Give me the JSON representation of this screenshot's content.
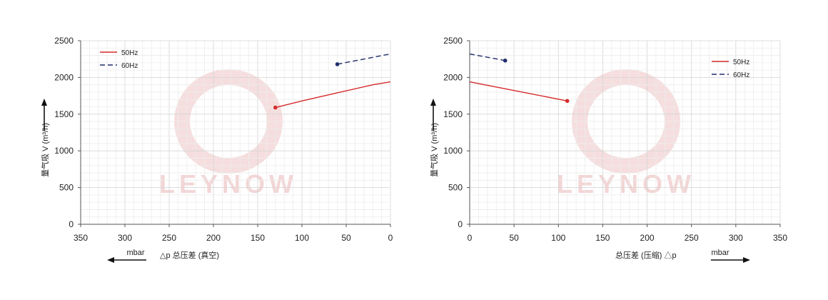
{
  "chart_data": [
    {
      "type": "line",
      "panel": "vacuum",
      "x_reversed": true,
      "xlim": [
        0,
        350
      ],
      "ylim": [
        0,
        2500
      ],
      "x_ticks": [
        350,
        300,
        250,
        200,
        150,
        100,
        50,
        0
      ],
      "y_ticks": [
        0,
        500,
        1000,
        1500,
        2000,
        2500
      ],
      "ylabel": "量气吸 V (m³/h)",
      "xlabel": "△p  总压差 (真空)",
      "x_unit": "mbar",
      "legend_placement": "top-left",
      "grid": true,
      "series": [
        {
          "name": "50Hz",
          "color": "#d62b2b",
          "dash": "solid",
          "x": [
            130,
            100,
            60,
            20,
            0
          ],
          "y": [
            1590,
            1680,
            1790,
            1900,
            1940
          ]
        },
        {
          "name": "60Hz",
          "color": "#1f2d6b",
          "dash": "dashed",
          "x": [
            60,
            0
          ],
          "y": [
            2180,
            2320
          ]
        }
      ],
      "watermark": "LEYNOW"
    },
    {
      "type": "line",
      "panel": "pressure",
      "x_reversed": false,
      "xlim": [
        0,
        350
      ],
      "ylim": [
        0,
        2500
      ],
      "x_ticks": [
        0,
        50,
        100,
        150,
        200,
        250,
        300,
        350
      ],
      "y_ticks": [
        0,
        500,
        1000,
        1500,
        2000,
        2500
      ],
      "ylabel": "量气吸 V (m³/h)",
      "xlabel": "总压差 (压缩) △p",
      "x_unit": "mbar",
      "legend_placement": "top-right",
      "grid": true,
      "series": [
        {
          "name": "50Hz",
          "color": "#d62b2b",
          "dash": "solid",
          "x": [
            0,
            110
          ],
          "y": [
            1940,
            1680
          ]
        },
        {
          "name": "60Hz",
          "color": "#1f2d6b",
          "dash": "dashed",
          "x": [
            0,
            40
          ],
          "y": [
            2320,
            2230
          ]
        }
      ],
      "watermark": "LEYNOW"
    }
  ]
}
